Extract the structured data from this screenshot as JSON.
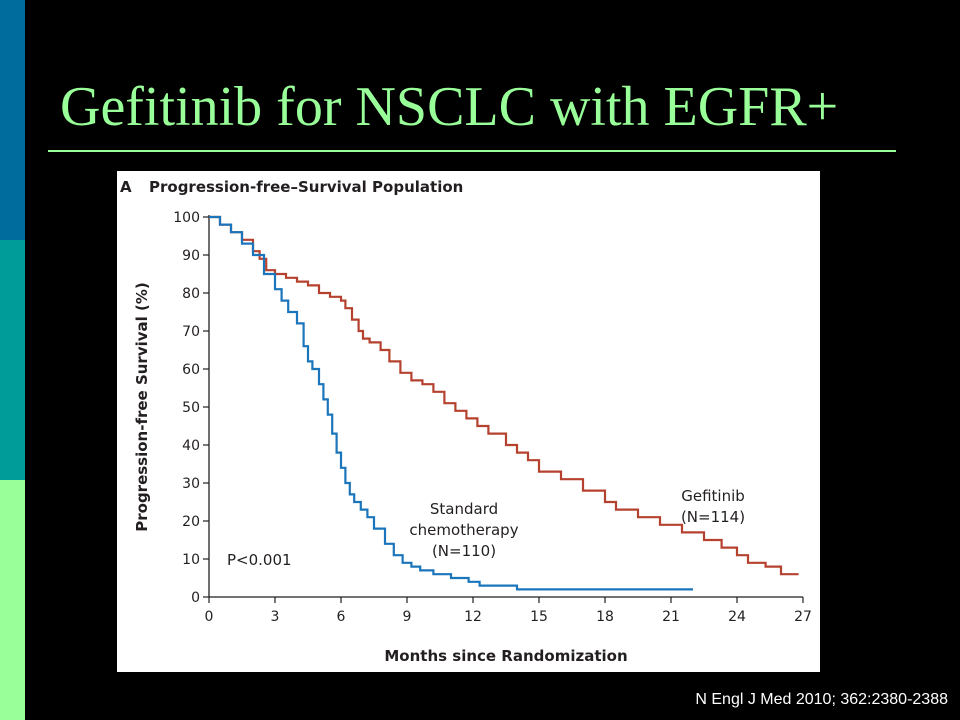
{
  "slide": {
    "title": "Gefitinib for NSCLC with EGFR+",
    "citation": "N Engl J Med 2010; 362:2380-2388",
    "colors": {
      "background": "#000000",
      "title": "#99FF99",
      "accent_bars": [
        "#006C9E",
        "#009C9A",
        "#99FF99"
      ]
    }
  },
  "chart_data": {
    "type": "line",
    "step": true,
    "panel_letter": "A",
    "title": "Progression-free–Survival Population",
    "xlabel": "Months since Randomization",
    "ylabel": "Progression-free Survival (%)",
    "xlim": [
      0,
      27
    ],
    "ylim": [
      0,
      100
    ],
    "xticks": [
      0,
      3,
      6,
      9,
      12,
      15,
      18,
      21,
      24,
      27
    ],
    "yticks": [
      0,
      10,
      20,
      30,
      40,
      50,
      60,
      70,
      80,
      90,
      100
    ],
    "grid": false,
    "p_value": "P<0.001",
    "series": [
      {
        "label_lines": [
          "Gefitinib",
          "(N=114)"
        ],
        "color": "#B5412F",
        "x": [
          0,
          0.5,
          1.0,
          1.5,
          2.0,
          2.3,
          2.6,
          3.0,
          3.5,
          4.0,
          4.5,
          5.0,
          5.5,
          6.0,
          6.2,
          6.5,
          6.8,
          7.0,
          7.3,
          7.8,
          8.2,
          8.7,
          9.2,
          9.7,
          10.2,
          10.7,
          11.2,
          11.7,
          12.2,
          12.7,
          13.5,
          14.0,
          14.5,
          15.0,
          16.0,
          17.0,
          18.0,
          18.5,
          19.5,
          20.5,
          21.5,
          22.5,
          23.3,
          24.0,
          24.5,
          25.3,
          26.0,
          26.8
        ],
        "y": [
          100,
          98,
          96,
          94,
          91,
          89,
          86,
          85,
          84,
          83,
          82,
          80,
          79,
          78,
          76,
          73,
          70,
          68,
          67,
          65,
          62,
          59,
          57,
          56,
          54,
          51,
          49,
          47,
          45,
          43,
          40,
          38,
          36,
          33,
          31,
          28,
          25,
          23,
          21,
          19,
          17,
          15,
          13,
          11,
          9,
          8,
          6,
          6
        ]
      },
      {
        "label_lines": [
          "Standard",
          "chemotherapy",
          "(N=110)"
        ],
        "color": "#1B75BB",
        "x": [
          0,
          0.5,
          1.0,
          1.5,
          2.0,
          2.5,
          3.0,
          3.3,
          3.6,
          4.0,
          4.3,
          4.5,
          4.7,
          5.0,
          5.2,
          5.4,
          5.6,
          5.8,
          6.0,
          6.2,
          6.4,
          6.6,
          6.9,
          7.2,
          7.5,
          8.0,
          8.4,
          8.8,
          9.2,
          9.6,
          10.2,
          11.0,
          11.8,
          12.3,
          14.0,
          18.0,
          22.0
        ],
        "y": [
          100,
          98,
          96,
          93,
          90,
          85,
          81,
          78,
          75,
          72,
          66,
          62,
          60,
          56,
          52,
          48,
          43,
          38,
          34,
          30,
          27,
          25,
          23,
          21,
          18,
          14,
          11,
          9,
          8,
          7,
          6,
          5,
          4,
          3,
          2,
          2,
          2
        ]
      }
    ]
  }
}
